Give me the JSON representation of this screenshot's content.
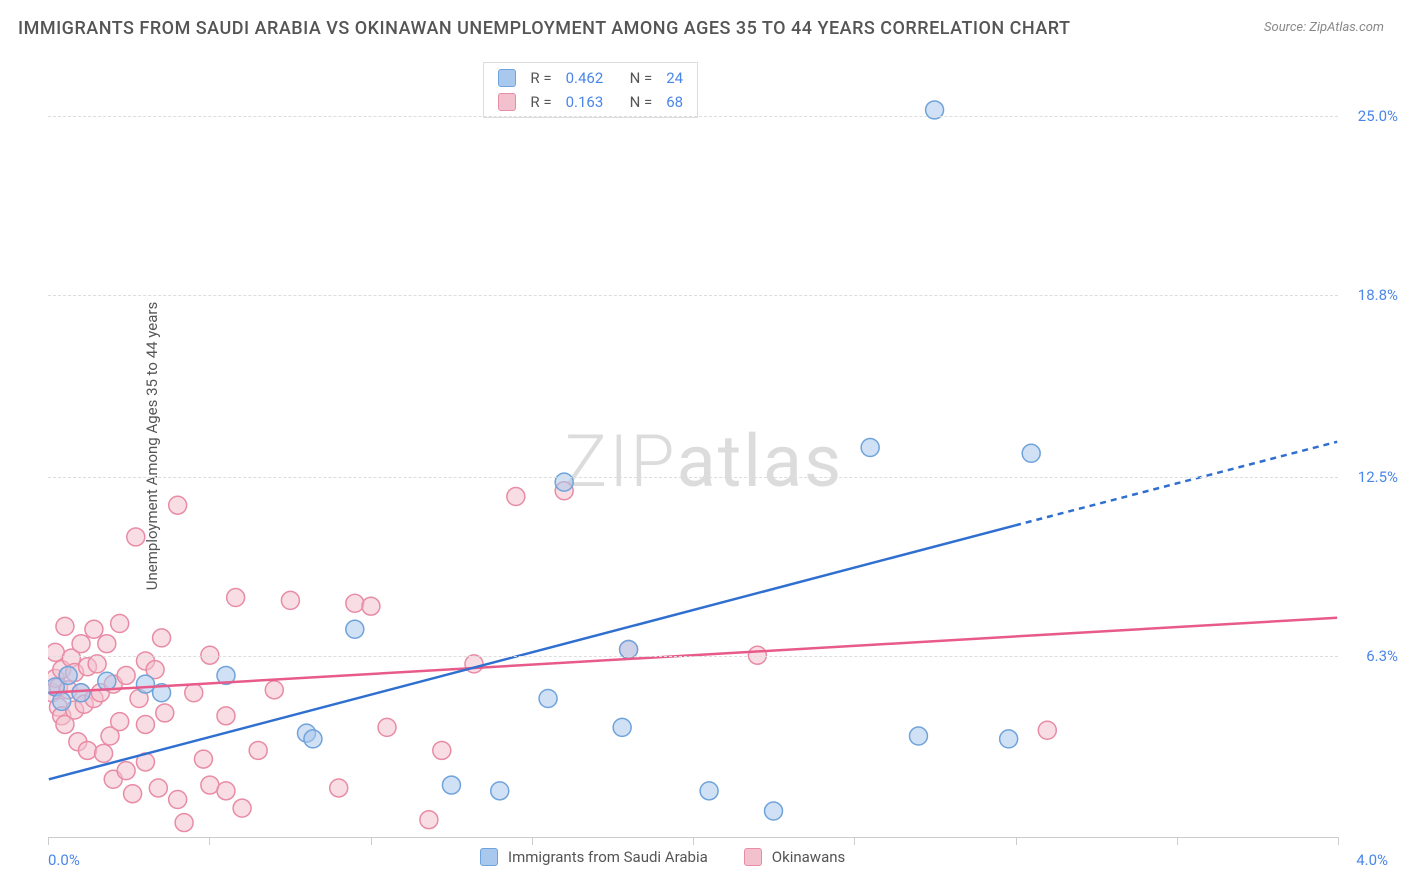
{
  "title": "IMMIGRANTS FROM SAUDI ARABIA VS OKINAWAN UNEMPLOYMENT AMONG AGES 35 TO 44 YEARS CORRELATION CHART",
  "source": "Source: ZipAtlas.com",
  "ylabel": "Unemployment Among Ages 35 to 44 years",
  "watermark": "ZIPatlas",
  "chart": {
    "type": "scatter",
    "xlim": [
      0.0,
      4.0
    ],
    "ylim": [
      0.0,
      27.0
    ],
    "xticks": [
      0.0,
      0.5,
      1.0,
      1.5,
      2.0,
      2.5,
      3.0,
      3.5,
      4.0
    ],
    "xtick_labels": {
      "0.0": "0.0%",
      "4.0": "4.0%"
    },
    "xlabel_color": "#4a86e8",
    "y_gridlines": [
      6.3,
      12.5,
      18.8,
      25.0
    ],
    "y_gridline_labels": [
      "6.3%",
      "12.5%",
      "18.8%",
      "25.0%"
    ],
    "ylabel_color": "#4a86e8",
    "grid_color": "#dddddd",
    "background_color": "#ffffff",
    "marker_radius": 9,
    "marker_opacity": 0.55,
    "line_width": 2.5,
    "series": [
      {
        "name": "Immigrants from Saudi Arabia",
        "color_fill": "#a9c8ed",
        "color_stroke": "#6fa3db",
        "line_color": "#2f6fd0",
        "R": "0.462",
        "N": "24",
        "trend": {
          "x1": 0.0,
          "y1": 2.0,
          "x2": 3.0,
          "y2": 10.8,
          "ext_x2": 4.0,
          "ext_y2": 13.7
        },
        "points": [
          {
            "x": 0.02,
            "y": 5.2
          },
          {
            "x": 0.04,
            "y": 4.7
          },
          {
            "x": 0.06,
            "y": 5.6
          },
          {
            "x": 0.1,
            "y": 5.0
          },
          {
            "x": 0.18,
            "y": 5.4
          },
          {
            "x": 0.3,
            "y": 5.3
          },
          {
            "x": 0.35,
            "y": 5.0
          },
          {
            "x": 0.55,
            "y": 5.6
          },
          {
            "x": 0.8,
            "y": 3.6
          },
          {
            "x": 0.95,
            "y": 7.2
          },
          {
            "x": 0.82,
            "y": 3.4
          },
          {
            "x": 1.25,
            "y": 1.8
          },
          {
            "x": 1.4,
            "y": 1.6
          },
          {
            "x": 1.55,
            "y": 4.8
          },
          {
            "x": 1.6,
            "y": 12.3
          },
          {
            "x": 1.78,
            "y": 3.8
          },
          {
            "x": 1.8,
            "y": 6.5
          },
          {
            "x": 2.05,
            "y": 1.6
          },
          {
            "x": 2.25,
            "y": 0.9
          },
          {
            "x": 2.55,
            "y": 13.5
          },
          {
            "x": 2.7,
            "y": 3.5
          },
          {
            "x": 2.75,
            "y": 25.2
          },
          {
            "x": 3.05,
            "y": 13.3
          },
          {
            "x": 2.98,
            "y": 3.4
          }
        ]
      },
      {
        "name": "Okinawans",
        "color_fill": "#f3c1ce",
        "color_stroke": "#e88ca5",
        "line_color": "#e85a8a",
        "R": "0.163",
        "N": "68",
        "trend": {
          "x1": 0.0,
          "y1": 5.0,
          "x2": 4.0,
          "y2": 7.6
        },
        "points": [
          {
            "x": 0.01,
            "y": 5.0
          },
          {
            "x": 0.02,
            "y": 5.5
          },
          {
            "x": 0.03,
            "y": 5.2
          },
          {
            "x": 0.02,
            "y": 6.4
          },
          {
            "x": 0.03,
            "y": 4.5
          },
          {
            "x": 0.04,
            "y": 5.8
          },
          {
            "x": 0.04,
            "y": 4.2
          },
          {
            "x": 0.05,
            "y": 7.3
          },
          {
            "x": 0.05,
            "y": 3.9
          },
          {
            "x": 0.06,
            "y": 5.1
          },
          {
            "x": 0.07,
            "y": 6.2
          },
          {
            "x": 0.08,
            "y": 4.4
          },
          {
            "x": 0.08,
            "y": 5.7
          },
          {
            "x": 0.09,
            "y": 3.3
          },
          {
            "x": 0.1,
            "y": 5.0
          },
          {
            "x": 0.1,
            "y": 6.7
          },
          {
            "x": 0.11,
            "y": 4.6
          },
          {
            "x": 0.12,
            "y": 5.9
          },
          {
            "x": 0.12,
            "y": 3.0
          },
          {
            "x": 0.14,
            "y": 7.2
          },
          {
            "x": 0.14,
            "y": 4.8
          },
          {
            "x": 0.15,
            "y": 6.0
          },
          {
            "x": 0.16,
            "y": 5.0
          },
          {
            "x": 0.17,
            "y": 2.9
          },
          {
            "x": 0.18,
            "y": 6.7
          },
          {
            "x": 0.19,
            "y": 3.5
          },
          {
            "x": 0.2,
            "y": 5.3
          },
          {
            "x": 0.2,
            "y": 2.0
          },
          {
            "x": 0.22,
            "y": 4.0
          },
          {
            "x": 0.22,
            "y": 7.4
          },
          {
            "x": 0.24,
            "y": 5.6
          },
          {
            "x": 0.24,
            "y": 2.3
          },
          {
            "x": 0.26,
            "y": 1.5
          },
          {
            "x": 0.27,
            "y": 10.4
          },
          {
            "x": 0.28,
            "y": 4.8
          },
          {
            "x": 0.3,
            "y": 6.1
          },
          {
            "x": 0.3,
            "y": 3.9
          },
          {
            "x": 0.3,
            "y": 2.6
          },
          {
            "x": 0.33,
            "y": 5.8
          },
          {
            "x": 0.34,
            "y": 1.7
          },
          {
            "x": 0.35,
            "y": 6.9
          },
          {
            "x": 0.36,
            "y": 4.3
          },
          {
            "x": 0.4,
            "y": 1.3
          },
          {
            "x": 0.4,
            "y": 11.5
          },
          {
            "x": 0.42,
            "y": 0.5
          },
          {
            "x": 0.45,
            "y": 5.0
          },
          {
            "x": 0.48,
            "y": 2.7
          },
          {
            "x": 0.5,
            "y": 6.3
          },
          {
            "x": 0.5,
            "y": 1.8
          },
          {
            "x": 0.55,
            "y": 4.2
          },
          {
            "x": 0.55,
            "y": 1.6
          },
          {
            "x": 0.58,
            "y": 8.3
          },
          {
            "x": 0.6,
            "y": 1.0
          },
          {
            "x": 0.65,
            "y": 3.0
          },
          {
            "x": 0.7,
            "y": 5.1
          },
          {
            "x": 0.75,
            "y": 8.2
          },
          {
            "x": 0.9,
            "y": 1.7
          },
          {
            "x": 0.95,
            "y": 8.1
          },
          {
            "x": 1.0,
            "y": 8.0
          },
          {
            "x": 1.05,
            "y": 3.8
          },
          {
            "x": 1.18,
            "y": 0.6
          },
          {
            "x": 1.22,
            "y": 3.0
          },
          {
            "x": 1.32,
            "y": 6.0
          },
          {
            "x": 1.45,
            "y": 11.8
          },
          {
            "x": 1.6,
            "y": 12.0
          },
          {
            "x": 1.8,
            "y": 6.5
          },
          {
            "x": 2.2,
            "y": 6.3
          },
          {
            "x": 3.1,
            "y": 3.7
          }
        ]
      }
    ]
  },
  "legend_top": {
    "R_label": "R =",
    "N_label": "N ="
  },
  "legend_bottom": [
    {
      "label": "Immigrants from Saudi Arabia",
      "fill": "#a9c8ed",
      "stroke": "#6fa3db"
    },
    {
      "label": "Okinawans",
      "fill": "#f3c1ce",
      "stroke": "#e88ca5"
    }
  ]
}
